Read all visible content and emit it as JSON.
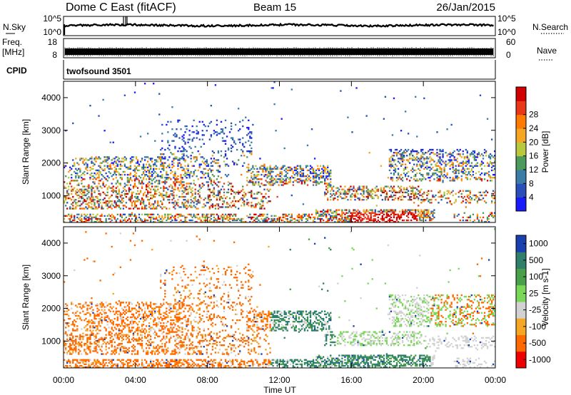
{
  "header": {
    "station": "Dome C East (fitACF)",
    "beam": "Beam 15",
    "date": "26/Jan/2015"
  },
  "strip_labels": {
    "nsky": "N.Sky",
    "nsearch": "N.Search",
    "freq_line1": "Freq.",
    "freq_line2": "[MHz]",
    "nave": "Nave",
    "cpid": "CPID",
    "cpid_value": "twofsound 3501"
  },
  "strip_ticks": {
    "noise_left": [
      "10^5",
      "10^0"
    ],
    "noise_right": [
      "10^5",
      "10^0"
    ],
    "freq_left": [
      "18",
      "8"
    ],
    "nave_right": [
      "60",
      "0"
    ]
  },
  "colors": {
    "power": [
      "#1a1aff",
      "#2a4fb8",
      "#3b7ca6",
      "#4c9a5c",
      "#b9c93e",
      "#f5a623",
      "#ff7a00",
      "#e83818",
      "#d00000"
    ],
    "velocity": [
      "#ee0000",
      "#ff6a00",
      "#f5a623",
      "#d2d2d2",
      "#7ad858",
      "#4aa048",
      "#2f7f6a",
      "#1a3fb0"
    ]
  },
  "chart_data": [
    {
      "type": "heatmap",
      "quantity": "Power",
      "ylabel": "Slant Range [km]",
      "xlabel": "Time UT",
      "ylim": [
        180,
        4500
      ],
      "yticks": [
        1000,
        2000,
        3000,
        4000
      ],
      "xticks": [
        "00:00",
        "04:00",
        "08:00",
        "12:00",
        "16:00",
        "20:00",
        "00:00"
      ],
      "colorbar": {
        "label": "Power [dB]",
        "ticks": [
          "4",
          "8",
          "12",
          "16",
          "20",
          "24",
          "28"
        ],
        "range": [
          0,
          30
        ]
      }
    },
    {
      "type": "heatmap",
      "quantity": "Velocity",
      "ylabel": "Slant Range [km]",
      "xlabel": "Time UT",
      "ylim": [
        180,
        4500
      ],
      "yticks": [
        1000,
        2000,
        3000,
        4000
      ],
      "xticks": [
        "00:00",
        "04:00",
        "08:00",
        "12:00",
        "16:00",
        "20:00",
        "00:00"
      ],
      "colorbar": {
        "label": "Velocity [m s-1]",
        "ticks": [
          "1000",
          "500",
          "100",
          "25",
          "-25",
          "-100",
          "-500",
          "-1000"
        ]
      }
    }
  ]
}
